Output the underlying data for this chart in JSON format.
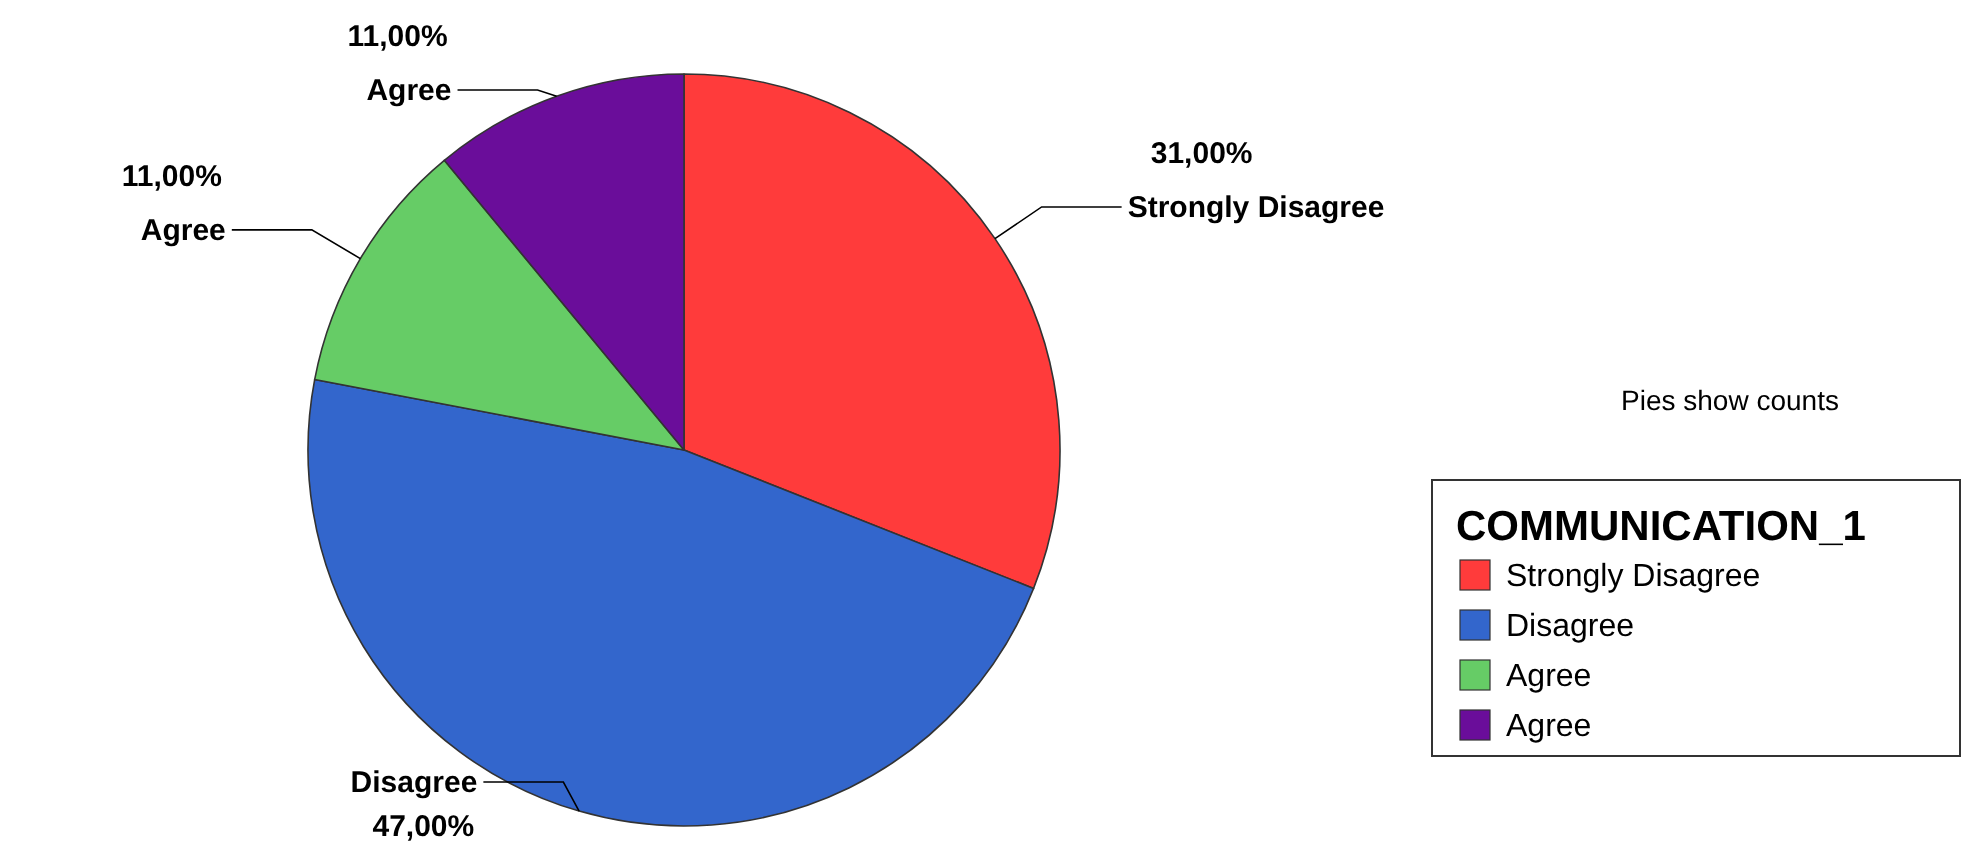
{
  "chart_data": {
    "type": "pie",
    "categories": [
      "Strongly Disagree",
      "Disagree",
      "Agree",
      "Agree"
    ],
    "values": [
      31,
      47,
      11,
      11
    ],
    "value_labels": [
      "31,00%",
      "47,00%",
      "11,00%",
      "11,00%"
    ],
    "colors": [
      "#ff3b3b",
      "#3366cc",
      "#66cc66",
      "#6a0d9a"
    ],
    "legend": "right",
    "legend_title": "COMMUNICATION_1",
    "annotations": [
      "Pies show counts"
    ]
  }
}
